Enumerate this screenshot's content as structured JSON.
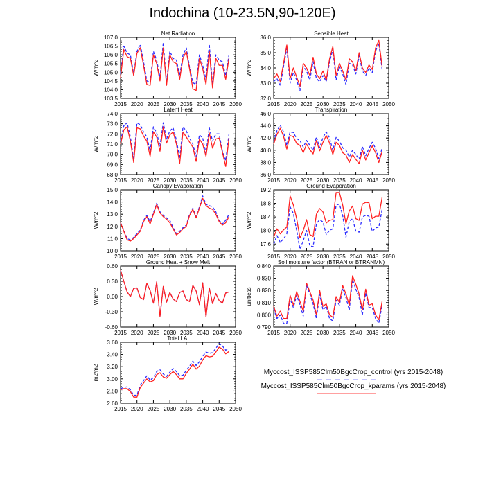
{
  "title": "Indochina (10-23.5N,90-120E)",
  "colors": {
    "control": "#2b2bff",
    "kparams": "#ff2020",
    "axis": "#000000"
  },
  "legend": [
    {
      "label": "Myccost_ISSP585Clm50BgcCrop_control (yrs 2015-2048)",
      "color": "#b0b0ff",
      "style": "dashed"
    },
    {
      "label": "Myccost_ISSP585Clm50BgcCrop_kparams (yrs 2015-2048)",
      "color": "#ff8080",
      "style": "solid"
    }
  ],
  "chart_data": [
    {
      "type": "line",
      "title": "Net Radiation",
      "ylabel": "W/m^2",
      "xlim": [
        2015,
        2050
      ],
      "ylim": [
        103.5,
        107.0
      ],
      "xticks": [
        "2015",
        "2020",
        "2025",
        "2030",
        "2035",
        "2040",
        "2045",
        "2050"
      ],
      "yticks": [
        "103.5",
        "104.0",
        "104.5",
        "105.0",
        "105.5",
        "106.0",
        "106.5",
        "107.0"
      ],
      "x_start": 2015,
      "series": [
        {
          "name": "control",
          "values": [
            104.9,
            106.5,
            106.1,
            106.0,
            104.9,
            106.2,
            106.6,
            105.6,
            104.5,
            104.4,
            106.2,
            105.7,
            104.7,
            106.7,
            104.4,
            106.2,
            105.8,
            105.7,
            104.8,
            106.0,
            106.4,
            105.3,
            104.4,
            104.3,
            106.0,
            105.4,
            104.6,
            106.6,
            104.3,
            106.0,
            105.7,
            105.6,
            104.8,
            106.0
          ]
        },
        {
          "name": "kparams",
          "values": [
            104.7,
            106.3,
            105.9,
            105.8,
            104.8,
            106.1,
            106.4,
            105.4,
            104.3,
            104.25,
            106.0,
            105.5,
            104.5,
            106.4,
            104.25,
            106.0,
            105.6,
            105.5,
            104.6,
            105.8,
            106.2,
            105.2,
            104.05,
            103.95,
            105.8,
            105.2,
            104.3,
            106.2,
            104.1,
            105.8,
            105.4,
            105.4,
            104.6,
            105.8
          ]
        }
      ]
    },
    {
      "type": "line",
      "title": "Sensible Heat",
      "ylabel": "W/m^2",
      "xlim": [
        2015,
        2050
      ],
      "ylim": [
        32.0,
        36.0
      ],
      "xticks": [
        "2015",
        "2020",
        "2025",
        "2030",
        "2035",
        "2040",
        "2045",
        "2050"
      ],
      "yticks": [
        "32.0",
        "33.0",
        "34.0",
        "35.0",
        "36.0"
      ],
      "x_start": 2015,
      "series": [
        {
          "name": "control",
          "values": [
            33.1,
            33.3,
            32.8,
            34.1,
            35.3,
            33.0,
            33.7,
            33.2,
            32.5,
            34.1,
            33.8,
            33.2,
            34.4,
            33.3,
            33.1,
            33.5,
            33.1,
            34.4,
            35.2,
            33.2,
            34.1,
            33.6,
            32.9,
            34.3,
            34.2,
            33.6,
            34.8,
            33.8,
            33.5,
            34.0,
            33.7,
            35.1,
            35.6,
            33.9
          ]
        },
        {
          "name": "kparams",
          "values": [
            33.3,
            33.6,
            33.1,
            34.3,
            35.5,
            33.3,
            34.0,
            33.4,
            32.8,
            34.3,
            34.0,
            33.5,
            34.7,
            33.6,
            33.3,
            33.8,
            33.2,
            34.6,
            35.4,
            33.5,
            34.3,
            33.8,
            33.2,
            34.6,
            34.4,
            33.8,
            35.0,
            34.0,
            33.7,
            34.2,
            33.9,
            35.3,
            35.8,
            34.1
          ]
        }
      ]
    },
    {
      "type": "line",
      "title": "Latent Heat",
      "ylabel": "W/m^2",
      "xlim": [
        2015,
        2050
      ],
      "ylim": [
        68.0,
        74.0
      ],
      "xticks": [
        "2015",
        "2020",
        "2025",
        "2030",
        "2035",
        "2040",
        "2045",
        "2050"
      ],
      "yticks": [
        "68.0",
        "69.0",
        "70.0",
        "71.0",
        "72.0",
        "73.0",
        "74.0"
      ],
      "x_start": 2015,
      "series": [
        {
          "name": "control",
          "values": [
            71.3,
            72.8,
            73.1,
            71.7,
            69.5,
            73.1,
            72.9,
            72.2,
            71.7,
            70.3,
            72.7,
            72.1,
            70.8,
            73.1,
            71.5,
            72.3,
            72.6,
            71.4,
            69.6,
            72.7,
            72.3,
            71.6,
            71.0,
            69.8,
            71.9,
            71.6,
            70.1,
            72.6,
            71.3,
            72.0,
            72.0,
            70.3,
            69.4,
            72.0
          ]
        },
        {
          "name": "kparams",
          "values": [
            71.0,
            72.4,
            72.7,
            71.3,
            69.2,
            72.6,
            72.5,
            71.8,
            71.3,
            69.8,
            72.2,
            71.7,
            70.3,
            72.7,
            71.1,
            71.9,
            72.2,
            71.0,
            69.1,
            72.2,
            71.7,
            71.2,
            70.7,
            69.3,
            71.5,
            71.0,
            69.8,
            72.1,
            70.6,
            71.5,
            71.6,
            70.2,
            68.8,
            71.6
          ]
        }
      ]
    },
    {
      "type": "line",
      "title": "Transpiration",
      "ylabel": "W/m^2",
      "xlim": [
        2015,
        2050
      ],
      "ylim": [
        36.0,
        46.0
      ],
      "xticks": [
        "2015",
        "2020",
        "2025",
        "2030",
        "2035",
        "2040",
        "2045",
        "2050"
      ],
      "yticks": [
        "36.0",
        "38.0",
        "40.0",
        "42.0",
        "44.0",
        "46.0"
      ],
      "x_start": 2015,
      "series": [
        {
          "name": "control",
          "values": [
            41.4,
            43.2,
            44.1,
            43.0,
            40.8,
            43.0,
            42.9,
            41.9,
            41.6,
            40.5,
            41.6,
            40.8,
            40.0,
            42.2,
            40.4,
            42.1,
            43.0,
            42.0,
            40.0,
            42.1,
            41.5,
            40.4,
            40.0,
            38.9,
            40.0,
            39.3,
            38.5,
            40.6,
            39.1,
            40.3,
            41.3,
            40.3,
            38.6,
            40.3
          ]
        },
        {
          "name": "kparams",
          "values": [
            41.0,
            42.6,
            43.6,
            42.3,
            40.2,
            42.4,
            42.2,
            41.1,
            40.8,
            39.6,
            41.0,
            40.1,
            39.4,
            41.6,
            39.9,
            41.3,
            42.4,
            41.2,
            39.3,
            41.3,
            40.8,
            39.6,
            39.2,
            38.0,
            39.3,
            38.5,
            37.8,
            40.0,
            38.4,
            39.6,
            40.7,
            39.6,
            38.0,
            39.8
          ]
        }
      ]
    },
    {
      "type": "line",
      "title": "Canopy Evaporation",
      "ylabel": "W/m^2",
      "xlim": [
        2015,
        2050
      ],
      "ylim": [
        10.0,
        15.0
      ],
      "xticks": [
        "2015",
        "2020",
        "2025",
        "2030",
        "2035",
        "2040",
        "2045",
        "2050"
      ],
      "yticks": [
        "10.0",
        "11.0",
        "12.0",
        "13.0",
        "14.0",
        "15.0"
      ],
      "x_start": 2015,
      "series": [
        {
          "name": "control",
          "values": [
            12.3,
            11.7,
            11.0,
            10.9,
            11.1,
            11.4,
            11.7,
            12.5,
            12.9,
            12.4,
            13.1,
            13.9,
            13.2,
            12.9,
            12.7,
            12.5,
            11.9,
            11.4,
            11.6,
            11.9,
            12.1,
            13.0,
            13.5,
            12.8,
            13.6,
            14.5,
            13.8,
            13.7,
            13.6,
            13.2,
            12.5,
            12.2,
            12.5,
            13.0
          ]
        },
        {
          "name": "kparams",
          "values": [
            12.3,
            11.6,
            10.9,
            10.8,
            11.0,
            11.3,
            11.6,
            12.4,
            12.8,
            12.2,
            13.0,
            13.8,
            13.1,
            12.8,
            12.6,
            12.3,
            11.8,
            11.3,
            11.5,
            11.8,
            12.0,
            12.9,
            13.4,
            12.7,
            13.5,
            14.3,
            13.7,
            13.5,
            13.4,
            13.0,
            12.4,
            12.1,
            12.3,
            12.8
          ]
        }
      ]
    },
    {
      "type": "line",
      "title": "Ground Evaporation",
      "ylabel": "W/m^2",
      "xlim": [
        2015,
        2050
      ],
      "ylim": [
        17.4,
        19.2
      ],
      "xticks": [
        "2015",
        "2020",
        "2025",
        "2030",
        "2035",
        "2040",
        "2045",
        "2050"
      ],
      "yticks": [
        "17.6",
        "18.0",
        "18.4",
        "18.8",
        "19.2"
      ],
      "x_start": 2015,
      "series": [
        {
          "name": "control",
          "values": [
            17.6,
            17.85,
            17.65,
            17.75,
            17.9,
            18.7,
            18.5,
            18.0,
            17.45,
            17.7,
            18.0,
            17.55,
            17.52,
            18.2,
            18.32,
            18.25,
            17.88,
            18.0,
            18.05,
            18.75,
            18.78,
            18.45,
            17.8,
            18.27,
            18.35,
            17.98,
            17.95,
            18.4,
            18.45,
            18.42,
            17.97,
            18.08,
            18.1,
            18.62
          ]
        },
        {
          "name": "kparams",
          "values": [
            17.8,
            18.05,
            17.9,
            18.02,
            18.1,
            19.02,
            18.75,
            18.35,
            17.78,
            18.0,
            18.32,
            17.88,
            17.82,
            18.48,
            18.65,
            18.55,
            18.22,
            18.3,
            18.32,
            19.12,
            19.12,
            18.75,
            18.2,
            18.58,
            18.72,
            18.35,
            18.3,
            18.78,
            18.83,
            18.82,
            18.35,
            18.42,
            18.42,
            18.98
          ]
        }
      ]
    },
    {
      "type": "line",
      "title": "Ground Heat + Snow Melt",
      "ylabel": "W/m^2",
      "xlim": [
        2015,
        2050
      ],
      "ylim": [
        -0.6,
        0.6
      ],
      "xticks": [
        "2015",
        "2020",
        "2025",
        "2030",
        "2035",
        "2040",
        "2045",
        "2050"
      ],
      "yticks": [
        "-0.60",
        "-0.30",
        "0.00",
        "0.30",
        "0.60"
      ],
      "x_start": 2015,
      "series": [
        {
          "name": "control",
          "values": [
            0.52,
            0.3,
            0.09,
            0.0,
            0.16,
            0.17,
            -0.02,
            -0.06,
            0.26,
            0.12,
            -0.13,
            0.29,
            -0.39,
            0.2,
            -0.11,
            0.08,
            -0.05,
            -0.1,
            0.08,
            0.11,
            -0.06,
            -0.1,
            0.22,
            0.11,
            -0.16,
            0.27,
            -0.4,
            0.17,
            -0.14,
            0.06,
            -0.08,
            -0.13,
            0.07,
            0.09
          ]
        },
        {
          "name": "kparams",
          "values": [
            0.52,
            0.3,
            0.09,
            0.0,
            0.16,
            0.17,
            -0.02,
            -0.06,
            0.26,
            0.12,
            -0.13,
            0.29,
            -0.39,
            0.2,
            -0.11,
            0.08,
            -0.05,
            -0.1,
            0.08,
            0.11,
            -0.06,
            -0.1,
            0.22,
            0.11,
            -0.16,
            0.27,
            -0.4,
            0.17,
            -0.14,
            0.06,
            -0.08,
            -0.13,
            0.07,
            0.09
          ]
        }
      ]
    },
    {
      "type": "line",
      "title": "Soil moisture factor (BTRAN or BTRANMN)",
      "ylabel": "unitless",
      "xlim": [
        2015,
        2050
      ],
      "ylim": [
        0.79,
        0.84
      ],
      "xticks": [
        "2015",
        "2020",
        "2025",
        "2030",
        "2035",
        "2040",
        "2045",
        "2050"
      ],
      "yticks": [
        "0.790",
        "0.800",
        "0.810",
        "0.820",
        "0.830",
        "0.840"
      ],
      "x_start": 2015,
      "series": [
        {
          "name": "control",
          "values": [
            0.805,
            0.797,
            0.8,
            0.793,
            0.793,
            0.813,
            0.806,
            0.816,
            0.808,
            0.799,
            0.824,
            0.817,
            0.809,
            0.797,
            0.817,
            0.804,
            0.807,
            0.797,
            0.795,
            0.812,
            0.808,
            0.821,
            0.814,
            0.804,
            0.829,
            0.821,
            0.814,
            0.8,
            0.818,
            0.806,
            0.806,
            0.797,
            0.793,
            0.808
          ]
        },
        {
          "name": "kparams",
          "values": [
            0.807,
            0.799,
            0.803,
            0.797,
            0.797,
            0.816,
            0.808,
            0.819,
            0.811,
            0.803,
            0.826,
            0.819,
            0.812,
            0.8,
            0.82,
            0.807,
            0.809,
            0.8,
            0.798,
            0.815,
            0.81,
            0.824,
            0.817,
            0.808,
            0.832,
            0.825,
            0.817,
            0.804,
            0.821,
            0.808,
            0.809,
            0.8,
            0.796,
            0.811
          ]
        }
      ]
    },
    {
      "type": "line",
      "title": "Total LAI",
      "ylabel": "m2/m2",
      "xlim": [
        2015,
        2050
      ],
      "ylim": [
        2.6,
        3.6
      ],
      "xticks": [
        "2015",
        "2020",
        "2025",
        "2030",
        "2035",
        "2040",
        "2045",
        "2050"
      ],
      "yticks": [
        "2.60",
        "2.80",
        "3.00",
        "3.20",
        "3.40",
        "3.60"
      ],
      "x_start": 2015,
      "series": [
        {
          "name": "control",
          "values": [
            2.84,
            2.86,
            2.87,
            2.82,
            2.73,
            2.73,
            2.9,
            2.97,
            3.05,
            2.98,
            3.02,
            3.12,
            3.15,
            3.08,
            3.04,
            3.11,
            3.17,
            3.12,
            3.05,
            3.06,
            3.14,
            3.21,
            3.29,
            3.22,
            3.28,
            3.37,
            3.44,
            3.42,
            3.43,
            3.5,
            3.58,
            3.54,
            3.47,
            3.5
          ]
        },
        {
          "name": "kparams",
          "values": [
            2.82,
            2.84,
            2.84,
            2.79,
            2.7,
            2.7,
            2.86,
            2.93,
            3.0,
            2.95,
            2.97,
            3.07,
            3.1,
            3.03,
            3.01,
            3.07,
            3.12,
            3.07,
            3.0,
            3.0,
            3.09,
            3.16,
            3.24,
            3.16,
            3.21,
            3.31,
            3.38,
            3.36,
            3.37,
            3.44,
            3.52,
            3.49,
            3.41,
            3.45
          ]
        }
      ]
    }
  ]
}
